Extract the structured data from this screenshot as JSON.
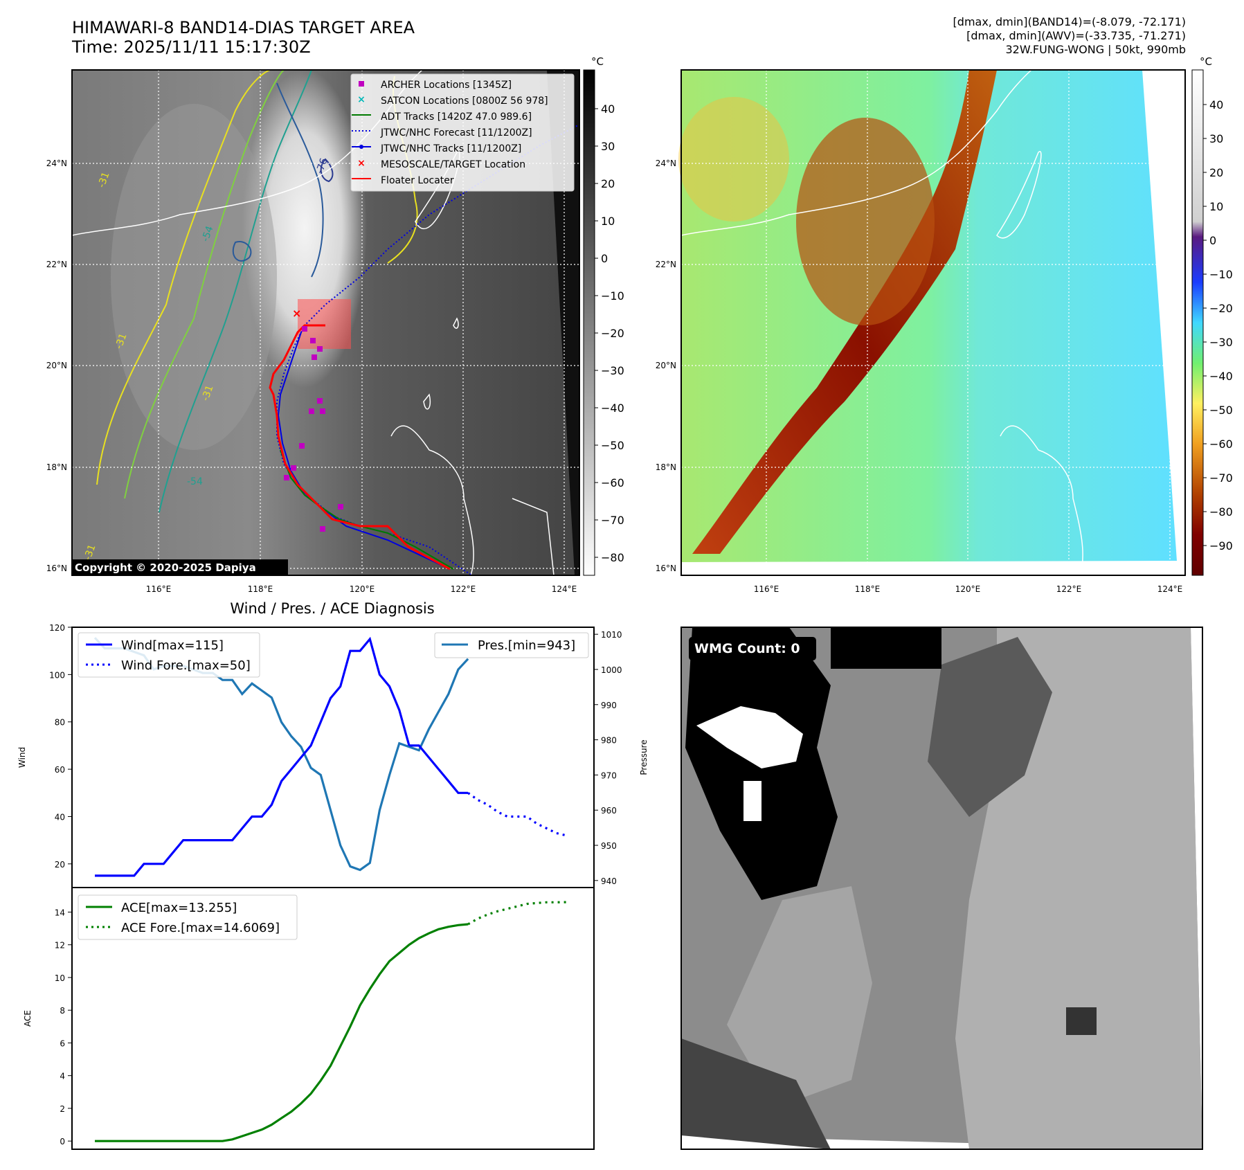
{
  "header": {
    "title": "HIMAWARI-8 BAND14-DIAS TARGET AREA",
    "time": "Time: 2025/11/11 15:17:30Z",
    "stats_band14": "[dmax, dmin](BAND14)=(-8.079, -72.171)",
    "stats_awv": "[dmax, dmin](AWV)=(-33.735, -71.271)",
    "storm": "32W.FUNG-WONG | 50kt, 990mb"
  },
  "colors": {
    "archer": "#c000c0",
    "satcon": "#00b8b8",
    "adt": "#007a00",
    "jtwc": "#0000e0",
    "target": "#ff0000",
    "floater": "#ff0000",
    "wind": "#0000ff",
    "pres": "#1f77b4",
    "ace": "#008000"
  },
  "map_common": {
    "lat_labels": [
      "24°N",
      "22°N",
      "20°N",
      "18°N",
      "16°N"
    ],
    "lon_labels": [
      "116°E",
      "118°E",
      "120°E",
      "122°E",
      "124°E"
    ],
    "copyright": "Copyright © 2020-2025 Dapiya"
  },
  "ir_map": {
    "legend": [
      {
        "label": "ARCHER Locations [1345Z]",
        "icon": "square-marker"
      },
      {
        "label": "SATCON Locations [0800Z 56 978]",
        "icon": "x-marker"
      },
      {
        "label": "ADT Tracks [1420Z 47.0 989.6]",
        "icon": "solid-line"
      },
      {
        "label": "JTWC/NHC Forecast [11/1200Z]",
        "icon": "dotted-line"
      },
      {
        "label": "JTWC/NHC Tracks [11/1200Z]",
        "icon": "line-with-dots"
      },
      {
        "label": "MESOSCALE/TARGET Location",
        "icon": "x-marker"
      },
      {
        "label": "Floater Locater",
        "icon": "solid-line"
      }
    ],
    "contour_labels": [
      "-76",
      "-31",
      "-31",
      "-54",
      "-31",
      "-31",
      "-54"
    ],
    "colorbar": {
      "unit": "°C",
      "ticks": [
        "40",
        "30",
        "20",
        "10",
        "0",
        "−10",
        "−20",
        "−30",
        "−40",
        "−50",
        "−60",
        "−70",
        "−80"
      ]
    }
  },
  "wv_map": {
    "colorbar": {
      "unit": "°C",
      "ticks": [
        "40",
        "30",
        "20",
        "10",
        "0",
        "−10",
        "−20",
        "−30",
        "−40",
        "−50",
        "−60",
        "−70",
        "−80",
        "−90"
      ]
    }
  },
  "wmg": {
    "label": "WMG Count: 0"
  },
  "chart_data": [
    {
      "type": "line",
      "title": "Wind / Pres. / ACE Diagnosis",
      "ylabel": "Wind",
      "y2label": "Pressure",
      "ylim": [
        10,
        120
      ],
      "y2lim": [
        938,
        1012
      ],
      "yticks": [
        "120",
        "100",
        "80",
        "60",
        "40",
        "20"
      ],
      "y2ticks": [
        "1010",
        "1000",
        "990",
        "980",
        "970",
        "960",
        "950",
        "940"
      ],
      "legend_left": [
        "Wind[max=115]",
        "Wind Fore.[max=50]"
      ],
      "legend_right": [
        "Pres.[min=943]"
      ],
      "series": [
        {
          "name": "Wind",
          "x": [
            0,
            2,
            3,
            4,
            5,
            6,
            7,
            8,
            9,
            10,
            11,
            12,
            13,
            14,
            15,
            16,
            17,
            18,
            19,
            20,
            21,
            22,
            23,
            24,
            25,
            26,
            27,
            28,
            29,
            30,
            31,
            32
          ],
          "values": [
            15,
            15,
            15,
            15,
            20,
            20,
            20,
            25,
            30,
            30,
            30,
            30,
            30,
            30,
            35,
            40,
            40,
            45,
            55,
            60,
            65,
            70,
            80,
            90,
            95,
            110,
            110,
            115,
            100,
            95,
            85,
            70
          ]
        },
        {
          "name": "Wind (cont.)",
          "x": [
            32,
            33,
            34,
            35,
            36,
            37,
            38
          ],
          "values": [
            70,
            70,
            65,
            60,
            55,
            50,
            50
          ]
        },
        {
          "name": "Wind Fore.",
          "x": [
            38,
            39,
            40,
            41,
            42,
            43,
            44,
            45,
            46,
            47,
            48
          ],
          "values": [
            50,
            47,
            45,
            42,
            40,
            40,
            40,
            37,
            35,
            33,
            32
          ]
        },
        {
          "name": "Pres.",
          "x": [
            0,
            1,
            2,
            3,
            4,
            5,
            6,
            7,
            8,
            9,
            10,
            11,
            12,
            13,
            14,
            15,
            16,
            17,
            18,
            19,
            20,
            21,
            22,
            23,
            24,
            25,
            26,
            27,
            28,
            29,
            30,
            31,
            32,
            33,
            34,
            35,
            36,
            37,
            38
          ],
          "values": [
            1009,
            1006,
            1006,
            1006,
            1005,
            1004,
            1000,
            1001,
            1001,
            1001,
            1000,
            999,
            999,
            997,
            997,
            993,
            996,
            994,
            992,
            985,
            981,
            978,
            972,
            970,
            960,
            950,
            944,
            943,
            945,
            960,
            970,
            979,
            978,
            977,
            983,
            988,
            993,
            1000,
            1003
          ]
        }
      ]
    },
    {
      "type": "line",
      "ylabel": "ACE",
      "ylim": [
        -0.5,
        15.5
      ],
      "yticks": [
        "14",
        "12",
        "10",
        "8",
        "6",
        "4",
        "2",
        "0"
      ],
      "legend": [
        "ACE[max=13.255]",
        "ACE Fore.[max=14.6069]"
      ],
      "series": [
        {
          "name": "ACE",
          "x": [
            0,
            4,
            8,
            12,
            13,
            14,
            15,
            16,
            17,
            18,
            19,
            20,
            21,
            22,
            23,
            24,
            25,
            26,
            27,
            28,
            29,
            30,
            31,
            32,
            33,
            34,
            35,
            36,
            37,
            38
          ],
          "values": [
            0,
            0,
            0,
            0,
            0,
            0.1,
            0.3,
            0.5,
            0.7,
            1.0,
            1.4,
            1.8,
            2.3,
            2.9,
            3.7,
            4.6,
            5.8,
            7.0,
            8.3,
            9.3,
            10.2,
            11.0,
            11.5,
            12.0,
            12.4,
            12.7,
            12.95,
            13.1,
            13.2,
            13.255
          ]
        },
        {
          "name": "ACE Fore.",
          "x": [
            38,
            39,
            40,
            41,
            42,
            43,
            44,
            45,
            46,
            47,
            48
          ],
          "values": [
            13.255,
            13.6,
            13.85,
            14.05,
            14.2,
            14.35,
            14.5,
            14.55,
            14.6,
            14.6,
            14.6069
          ]
        }
      ]
    }
  ]
}
